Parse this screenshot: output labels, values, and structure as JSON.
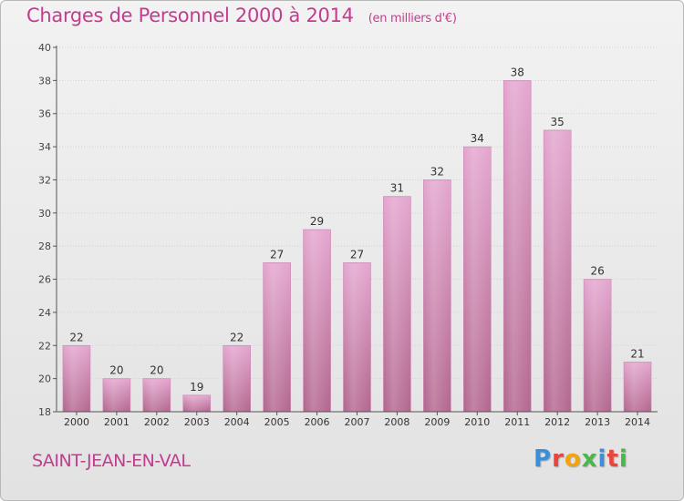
{
  "header": {
    "title": "Charges de Personnel 2000 à 2014",
    "subtitle": "(en milliers d'€)"
  },
  "footer": {
    "city": "SAINT-JEAN-EN-VAL",
    "logo_letters": [
      "P",
      "r",
      "o",
      "x",
      "i",
      "t",
      "i"
    ],
    "logo_colors": [
      "#3a8fd8",
      "#e8453c",
      "#f2a40c",
      "#49b749",
      "#3a8fd8",
      "#e8453c",
      "#49b749"
    ]
  },
  "colors": {
    "title": "#c23d8f",
    "bar_top": "#e4a6cf",
    "bar_bottom": "#b3678f"
  },
  "chart_data": {
    "type": "bar",
    "title": "Charges de Personnel 2000 à 2014",
    "subtitle": "(en milliers d'€)",
    "categories": [
      "2000",
      "2001",
      "2002",
      "2003",
      "2004",
      "2005",
      "2006",
      "2007",
      "2008",
      "2009",
      "2010",
      "2011",
      "2012",
      "2013",
      "2014"
    ],
    "values": [
      22,
      20,
      20,
      19,
      22,
      27,
      29,
      27,
      31,
      32,
      34,
      38,
      35,
      26,
      21
    ],
    "ylim": [
      18,
      40
    ],
    "yticks": [
      18,
      20,
      22,
      24,
      26,
      28,
      30,
      32,
      34,
      36,
      38,
      40
    ],
    "grid": true
  }
}
